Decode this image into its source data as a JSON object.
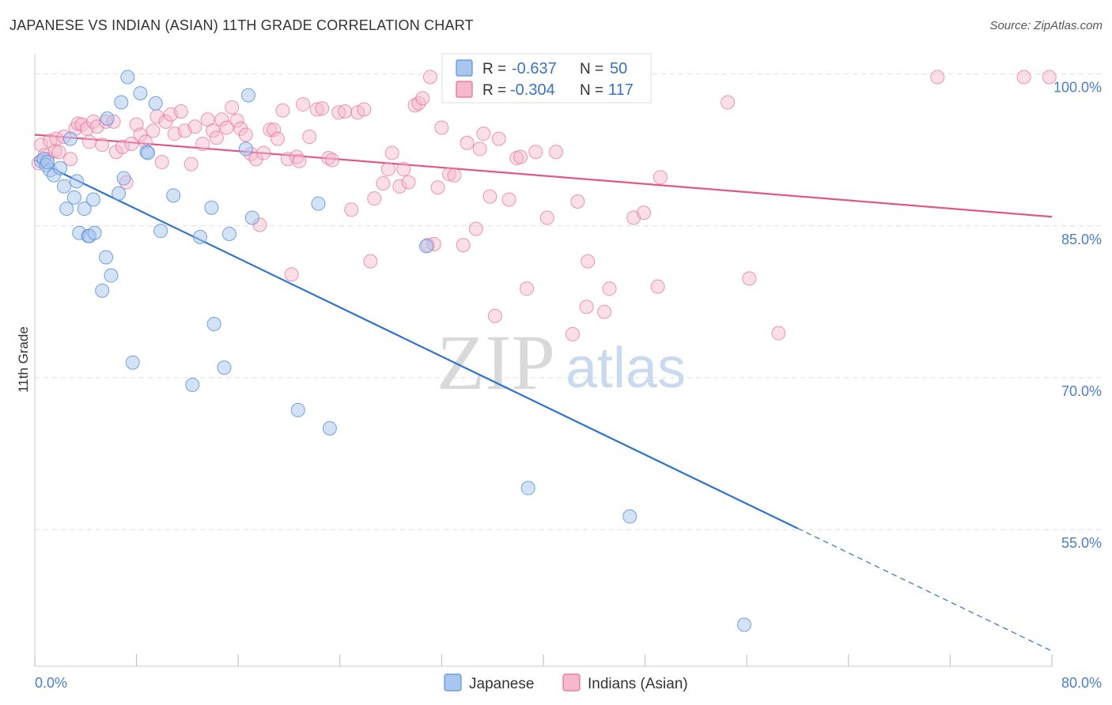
{
  "header": {
    "title": "JAPANESE VS INDIAN (ASIAN) 11TH GRADE CORRELATION CHART",
    "source": "Source: ZipAtlas.com"
  },
  "watermark": {
    "zip": "ZIP",
    "atlas": "atlas"
  },
  "colors": {
    "japanese": "#5b93d9",
    "japanese_fill": "#a9c6ee",
    "japanese_line": "#2f72d0",
    "indian": "#e56c99",
    "indian_fill": "#f5b8cd",
    "indian_line": "#e0578a",
    "tick_label": "#4a7fc7",
    "grid": "#dddddd"
  },
  "legend": {
    "rows": [
      {
        "r_label": "R =",
        "r_value": "-0.637",
        "n_label": "N =",
        "n_value": "50"
      },
      {
        "r_label": "R =",
        "r_value": "-0.304",
        "n_label": "N =",
        "n_value": "117"
      }
    ]
  },
  "chart_data": {
    "type": "scatter",
    "title": "JAPANESE VS INDIAN (ASIAN) 11TH GRADE CORRELATION CHART",
    "xlabel": "",
    "ylabel": "11th Grade",
    "xlim": [
      0,
      80
    ],
    "ylim": [
      41.5,
      102
    ],
    "x_tick_labels": [
      "0.0%",
      "80.0%"
    ],
    "y_ticks": [
      55,
      70,
      85,
      100
    ],
    "y_tick_labels": [
      "55.0%",
      "70.0%",
      "85.0%",
      "100.0%"
    ],
    "grid": true,
    "legend_position": "top-center",
    "series": [
      {
        "name": "Japanese",
        "r": -0.637,
        "n": 50,
        "trend": {
          "x0": 0,
          "y0": 91.5,
          "x1": 80,
          "y1": 43.0,
          "solid_until_x": 60
        },
        "points": [
          [
            0.5,
            91.4
          ],
          [
            0.7,
            91.6
          ],
          [
            0.9,
            91.0
          ],
          [
            1.2,
            90.5
          ],
          [
            1.5,
            90.0
          ],
          [
            2.0,
            90.7
          ],
          [
            2.3,
            88.9
          ],
          [
            2.5,
            86.7
          ],
          [
            2.8,
            93.6
          ],
          [
            3.1,
            87.8
          ],
          [
            3.3,
            89.4
          ],
          [
            3.5,
            84.3
          ],
          [
            3.9,
            86.7
          ],
          [
            4.2,
            84.0
          ],
          [
            4.3,
            84.0
          ],
          [
            4.6,
            87.6
          ],
          [
            4.7,
            84.3
          ],
          [
            5.3,
            78.6
          ],
          [
            5.6,
            81.9
          ],
          [
            5.7,
            95.6
          ],
          [
            6.0,
            80.1
          ],
          [
            6.6,
            88.2
          ],
          [
            6.8,
            97.2
          ],
          [
            7.0,
            89.7
          ],
          [
            7.3,
            99.7
          ],
          [
            7.7,
            71.5
          ],
          [
            8.3,
            98.1
          ],
          [
            8.8,
            92.3
          ],
          [
            8.9,
            92.2
          ],
          [
            9.5,
            97.1
          ],
          [
            9.9,
            84.5
          ],
          [
            10.9,
            88.0
          ],
          [
            12.4,
            69.3
          ],
          [
            13.0,
            83.9
          ],
          [
            13.9,
            86.8
          ],
          [
            14.1,
            75.3
          ],
          [
            14.9,
            71.0
          ],
          [
            15.3,
            84.2
          ],
          [
            16.8,
            97.9
          ],
          [
            16.6,
            92.6
          ],
          [
            17.1,
            85.8
          ],
          [
            20.7,
            66.8
          ],
          [
            22.3,
            87.2
          ],
          [
            23.2,
            65.0
          ],
          [
            30.8,
            83.0
          ],
          [
            37.3,
            99.7
          ],
          [
            38.8,
            59.1
          ],
          [
            46.8,
            56.3
          ],
          [
            55.8,
            45.6
          ],
          [
            1.0,
            91.3
          ]
        ]
      },
      {
        "name": "Indians (Asian)",
        "r": -0.304,
        "n": 117,
        "trend": {
          "x0": 0,
          "y0": 94.0,
          "x1": 80,
          "y1": 85.9
        },
        "points": [
          [
            0.3,
            91.2
          ],
          [
            0.5,
            93.0
          ],
          [
            0.8,
            92.0
          ],
          [
            1.0,
            91.6
          ],
          [
            1.2,
            93.4
          ],
          [
            1.6,
            92.4
          ],
          [
            1.7,
            93.6
          ],
          [
            1.9,
            92.3
          ],
          [
            2.3,
            93.8
          ],
          [
            2.8,
            91.6
          ],
          [
            3.2,
            94.6
          ],
          [
            3.4,
            95.1
          ],
          [
            3.7,
            95.0
          ],
          [
            4.1,
            94.6
          ],
          [
            4.3,
            93.3
          ],
          [
            4.6,
            95.3
          ],
          [
            4.9,
            94.8
          ],
          [
            5.3,
            93.0
          ],
          [
            5.6,
            95.3
          ],
          [
            6.2,
            95.3
          ],
          [
            6.4,
            92.3
          ],
          [
            6.9,
            92.8
          ],
          [
            7.2,
            89.3
          ],
          [
            7.6,
            93.1
          ],
          [
            8.0,
            95.0
          ],
          [
            8.3,
            94.0
          ],
          [
            8.7,
            93.3
          ],
          [
            9.3,
            94.4
          ],
          [
            9.6,
            95.8
          ],
          [
            10.0,
            91.3
          ],
          [
            10.3,
            95.3
          ],
          [
            10.7,
            96.0
          ],
          [
            11.0,
            94.1
          ],
          [
            11.5,
            96.3
          ],
          [
            11.8,
            94.4
          ],
          [
            12.3,
            91.1
          ],
          [
            12.6,
            94.8
          ],
          [
            13.2,
            93.1
          ],
          [
            13.6,
            95.5
          ],
          [
            14.0,
            94.4
          ],
          [
            14.3,
            93.7
          ],
          [
            14.7,
            95.5
          ],
          [
            15.1,
            94.7
          ],
          [
            15.5,
            96.7
          ],
          [
            15.9,
            95.4
          ],
          [
            16.2,
            94.6
          ],
          [
            16.6,
            94.0
          ],
          [
            17.0,
            92.1
          ],
          [
            17.4,
            91.6
          ],
          [
            17.7,
            85.1
          ],
          [
            18.0,
            92.2
          ],
          [
            18.5,
            94.5
          ],
          [
            18.8,
            94.5
          ],
          [
            19.1,
            93.6
          ],
          [
            19.5,
            96.4
          ],
          [
            19.9,
            91.6
          ],
          [
            20.2,
            80.2
          ],
          [
            20.6,
            91.8
          ],
          [
            20.8,
            91.4
          ],
          [
            21.1,
            97.0
          ],
          [
            21.6,
            93.8
          ],
          [
            22.2,
            96.5
          ],
          [
            22.6,
            96.6
          ],
          [
            23.1,
            91.7
          ],
          [
            23.4,
            91.5
          ],
          [
            23.9,
            96.2
          ],
          [
            24.4,
            96.3
          ],
          [
            24.9,
            86.6
          ],
          [
            25.4,
            96.2
          ],
          [
            25.9,
            96.5
          ],
          [
            26.4,
            81.5
          ],
          [
            26.7,
            87.7
          ],
          [
            27.4,
            89.2
          ],
          [
            27.8,
            90.6
          ],
          [
            28.1,
            92.2
          ],
          [
            28.7,
            88.9
          ],
          [
            29.0,
            90.6
          ],
          [
            29.4,
            89.3
          ],
          [
            29.9,
            96.9
          ],
          [
            30.2,
            97.1
          ],
          [
            30.5,
            97.6
          ],
          [
            30.9,
            83.1
          ],
          [
            31.1,
            99.7
          ],
          [
            31.4,
            83.2
          ],
          [
            31.7,
            88.8
          ],
          [
            32.0,
            94.7
          ],
          [
            32.6,
            90.1
          ],
          [
            33.0,
            90.0
          ],
          [
            33.7,
            83.1
          ],
          [
            34.0,
            93.2
          ],
          [
            34.7,
            84.7
          ],
          [
            35.0,
            92.6
          ],
          [
            35.3,
            94.1
          ],
          [
            35.8,
            87.9
          ],
          [
            36.2,
            76.1
          ],
          [
            36.5,
            93.6
          ],
          [
            37.3,
            87.6
          ],
          [
            37.9,
            91.7
          ],
          [
            38.2,
            91.8
          ],
          [
            38.7,
            78.8
          ],
          [
            39.4,
            92.3
          ],
          [
            40.3,
            85.8
          ],
          [
            41.0,
            92.3
          ],
          [
            42.3,
            74.3
          ],
          [
            42.7,
            87.4
          ],
          [
            43.4,
            77.0
          ],
          [
            43.5,
            81.5
          ],
          [
            44.8,
            76.5
          ],
          [
            45.2,
            78.8
          ],
          [
            47.1,
            85.8
          ],
          [
            47.9,
            86.3
          ],
          [
            49.0,
            79.0
          ],
          [
            49.2,
            89.8
          ],
          [
            54.5,
            97.2
          ],
          [
            56.2,
            79.8
          ],
          [
            58.5,
            74.4
          ],
          [
            71.0,
            99.7
          ],
          [
            77.8,
            99.7
          ],
          [
            79.8,
            99.7
          ]
        ]
      }
    ]
  },
  "bottom_legend": {
    "items": [
      {
        "label": "Japanese"
      },
      {
        "label": "Indians (Asian)"
      }
    ]
  }
}
